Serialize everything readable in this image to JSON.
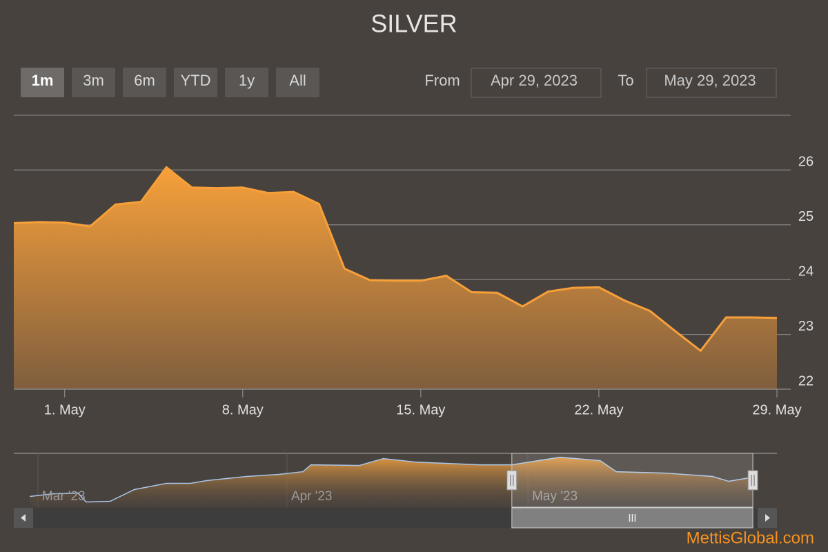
{
  "chart_data": {
    "type": "area",
    "title": "SILVER",
    "range_buttons": [
      "1m",
      "3m",
      "6m",
      "YTD",
      "1y",
      "All"
    ],
    "selected_button": 0,
    "from_label": "From",
    "from_date": "Apr 29, 2023",
    "to_label": "To",
    "to_date": "May 29, 2023",
    "credits": "MettisGlobal.com",
    "color": "#f7a03a",
    "x": [
      "2023-04-29",
      "2023-04-30",
      "2023-05-01",
      "2023-05-02",
      "2023-05-03",
      "2023-05-04",
      "2023-05-05",
      "2023-05-06",
      "2023-05-07",
      "2023-05-08",
      "2023-05-09",
      "2023-05-10",
      "2023-05-11",
      "2023-05-12",
      "2023-05-13",
      "2023-05-14",
      "2023-05-15",
      "2023-05-16",
      "2023-05-17",
      "2023-05-18",
      "2023-05-19",
      "2023-05-20",
      "2023-05-21",
      "2023-05-22",
      "2023-05-23",
      "2023-05-24",
      "2023-05-25",
      "2023-05-26",
      "2023-05-27",
      "2023-05-28",
      "2023-05-29"
    ],
    "values": [
      25.03,
      25.05,
      25.04,
      24.97,
      25.37,
      25.42,
      26.05,
      25.68,
      25.67,
      25.68,
      25.58,
      25.6,
      25.38,
      24.2,
      23.99,
      23.98,
      23.98,
      24.07,
      23.77,
      23.76,
      23.51,
      23.78,
      23.85,
      23.86,
      23.62,
      23.43,
      23.06,
      22.7,
      23.31,
      23.31,
      23.3
    ],
    "xlim": [
      "2023-04-29",
      "2023-05-29"
    ],
    "xticks": [
      {
        "value": "2023-05-01",
        "label": "1. May"
      },
      {
        "value": "2023-05-08",
        "label": "8. May"
      },
      {
        "value": "2023-05-15",
        "label": "15. May"
      },
      {
        "value": "2023-05-22",
        "label": "22. May"
      },
      {
        "value": "2023-05-29",
        "label": "29. May"
      }
    ],
    "ylim": [
      22,
      27
    ],
    "yticks": [
      22,
      23,
      24,
      25,
      26
    ],
    "grid": true,
    "navigator": {
      "color": "#a9c6e8",
      "x": [
        "2023-02-28",
        "2023-03-03",
        "2023-03-06",
        "2023-03-07",
        "2023-03-10",
        "2023-03-13",
        "2023-03-17",
        "2023-03-20",
        "2023-03-22",
        "2023-03-27",
        "2023-03-31",
        "2023-04-03",
        "2023-04-04",
        "2023-04-10",
        "2023-04-13",
        "2023-04-17",
        "2023-04-21",
        "2023-04-25",
        "2023-04-29",
        "2023-05-05",
        "2023-05-10",
        "2023-05-12",
        "2023-05-18",
        "2023-05-24",
        "2023-05-26",
        "2023-05-29"
      ],
      "values": [
        20.91,
        21.27,
        21.36,
        20.18,
        20.27,
        21.82,
        22.64,
        22.64,
        23.0,
        23.55,
        23.82,
        24.18,
        25.09,
        25.0,
        25.91,
        25.45,
        25.27,
        25.09,
        25.09,
        26.09,
        25.64,
        24.18,
        24.0,
        23.55,
        22.91,
        23.45
      ],
      "xlim": [
        "2023-02-26",
        "2023-06-01"
      ],
      "ylim": [
        19.5,
        26.6
      ],
      "xticks": [
        {
          "value": "2023-03-01",
          "label": "Mar '23"
        },
        {
          "value": "2023-04-01",
          "label": "Apr '23"
        },
        {
          "value": "2023-05-01",
          "label": "May '23"
        }
      ]
    }
  }
}
